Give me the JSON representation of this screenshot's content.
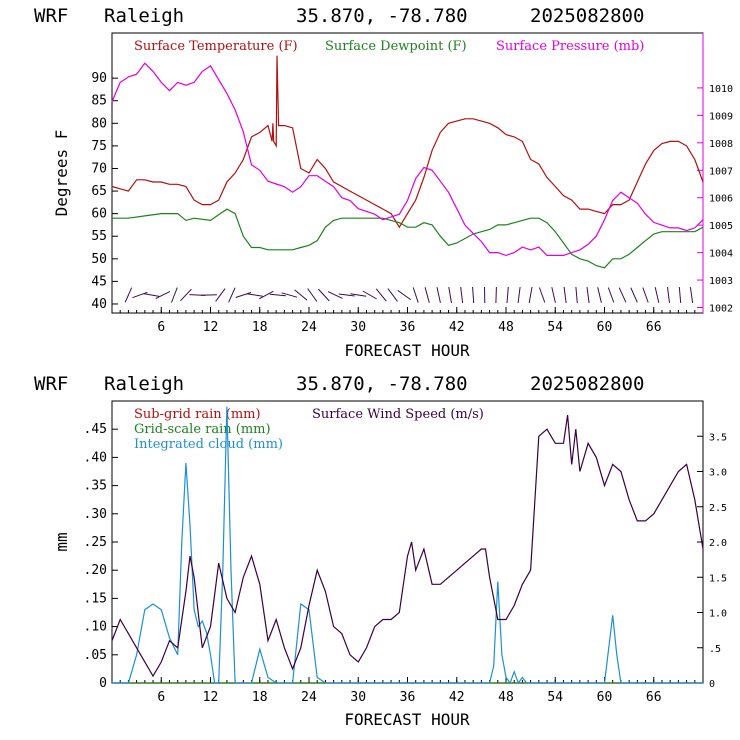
{
  "colors": {
    "temperature": "#b01010",
    "dewpoint": "#208020",
    "pressure": "#e000e0",
    "subgrid_rain": "#b01010",
    "gridscale_rain": "#208020",
    "cloud": "#1f8fd0",
    "wind": "#3a0040",
    "barb": "#3a0a50"
  },
  "panels": [
    {
      "header": {
        "model": "WRF",
        "location": "Raleigh",
        "coords": "35.870, -78.780",
        "init": "2025082800"
      },
      "ylabel": "Degrees F",
      "xlabel": "FORECAST HOUR",
      "xticks": [
        "6",
        "12",
        "18",
        "24",
        "30",
        "36",
        "42",
        "48",
        "54",
        "60",
        "66"
      ],
      "yticks_left": [
        "40",
        "45",
        "50",
        "55",
        "60",
        "65",
        "70",
        "75",
        "80",
        "85",
        "90"
      ],
      "yticks_right": [
        "1002",
        "1003",
        "1004",
        "1005",
        "1006",
        "1007",
        "1008",
        "1009",
        "1010"
      ],
      "legend": [
        "Surface Temperature (F)",
        "Surface Dewpoint (F)",
        "Surface Pressure (mb)"
      ]
    },
    {
      "header": {
        "model": "WRF",
        "location": "Raleigh",
        "coords": "35.870, -78.780",
        "init": "2025082800"
      },
      "ylabel": "mm",
      "xlabel": "FORECAST HOUR",
      "xticks": [
        "6",
        "12",
        "18",
        "24",
        "30",
        "36",
        "42",
        "48",
        "54",
        "60",
        "66"
      ],
      "yticks_left": [
        "0",
        ".05",
        ".10",
        ".15",
        ".20",
        ".25",
        ".30",
        ".35",
        ".40",
        ".45"
      ],
      "yticks_right": [
        "0",
        ".5",
        "1.0",
        "1.5",
        "2.0",
        "2.5",
        "3.0",
        "3.5"
      ],
      "legend": [
        "Sub-grid rain (mm)",
        "Grid-scale rain (mm)",
        "Integrated cloud (mm)",
        "Surface Wind Speed (m/s)"
      ]
    }
  ],
  "chart_data": [
    {
      "type": "line",
      "title": "WRF Raleigh 35.870, -78.780 2025082800",
      "xlabel": "FORECAST HOUR",
      "ylabel": "Degrees F",
      "xlim": [
        0,
        72
      ],
      "ylim": [
        38,
        100
      ],
      "y2lim": [
        1001.8,
        1012
      ],
      "series": [
        {
          "name": "Surface Temperature (F)",
          "axis": "left",
          "x": [
            0,
            1,
            2,
            3,
            4,
            5,
            6,
            7,
            8,
            9,
            10,
            11,
            12,
            13,
            14,
            15,
            16,
            17,
            18,
            19,
            19.5,
            19.6,
            19.7,
            20,
            20.1,
            20.3,
            21,
            22,
            23,
            24,
            25,
            26,
            27,
            28,
            29,
            30,
            31,
            32,
            33,
            34,
            35,
            36,
            37,
            38,
            39,
            40,
            41,
            42,
            43,
            44,
            45,
            46,
            47,
            48,
            49,
            50,
            51,
            52,
            53,
            54,
            55,
            56,
            57,
            58,
            59,
            60,
            61,
            62,
            63,
            64,
            65,
            66,
            67,
            68,
            69,
            70,
            71,
            72
          ],
          "y": [
            66,
            65.5,
            65,
            67.5,
            67.5,
            67,
            67,
            66.5,
            66.5,
            66,
            63,
            62,
            62,
            63,
            67,
            69,
            72,
            77,
            78,
            79.5,
            76,
            80,
            76,
            75,
            95,
            79.5,
            79.5,
            79,
            70,
            69,
            72,
            70,
            67,
            66,
            65,
            64,
            63,
            62,
            61,
            60,
            57,
            60,
            63,
            68,
            74,
            78,
            80,
            80.5,
            81,
            81,
            80.5,
            80,
            79,
            77.5,
            77,
            76,
            72,
            71,
            68,
            66,
            64,
            63,
            61,
            61,
            60.5,
            60,
            62,
            62,
            63,
            67,
            71,
            74,
            75.5,
            76,
            76,
            75,
            72,
            67
          ]
        },
        {
          "name": "Surface Dewpoint (F)",
          "axis": "left",
          "x": [
            0,
            2,
            4,
            6,
            8,
            9,
            10,
            12,
            14,
            15,
            16,
            17,
            18,
            19,
            20,
            21,
            22,
            23,
            24,
            25,
            26,
            27,
            28,
            29,
            30,
            31,
            32,
            33,
            34,
            35,
            36,
            37,
            38,
            39,
            40,
            41,
            42,
            43,
            44,
            45,
            46,
            47,
            48,
            49,
            50,
            51,
            52,
            53,
            54,
            55,
            56,
            57,
            58,
            59,
            60,
            61,
            62,
            63,
            64,
            65,
            66,
            67,
            68,
            69,
            70,
            71,
            72
          ],
          "y": [
            59,
            59,
            59.5,
            60,
            60,
            58.5,
            59,
            58.5,
            61,
            60,
            55,
            52.5,
            52.5,
            52,
            52,
            52,
            52,
            52.5,
            53,
            54,
            57,
            58.5,
            59,
            59,
            59,
            59,
            59,
            59,
            58.5,
            58,
            57,
            57,
            58,
            57.5,
            55,
            53,
            53.5,
            54.5,
            55.5,
            56,
            56.5,
            57.5,
            57.5,
            58,
            58.5,
            59,
            59,
            58,
            56,
            53.5,
            51,
            50,
            49.5,
            48.5,
            48,
            50,
            50,
            51,
            52.5,
            54,
            55.5,
            56,
            56,
            56,
            56,
            56,
            57
          ]
        },
        {
          "name": "Surface Pressure (mb)",
          "axis": "right",
          "x": [
            0,
            1,
            2,
            3,
            4,
            5,
            6,
            7,
            8,
            9,
            10,
            11,
            12,
            13,
            14,
            15,
            16,
            17,
            18,
            19,
            20,
            21,
            22,
            23,
            24,
            25,
            26,
            27,
            28,
            29,
            30,
            31,
            32,
            33,
            34,
            35,
            36,
            37,
            38,
            39,
            40,
            41,
            42,
            43,
            44,
            45,
            46,
            47,
            48,
            49,
            50,
            51,
            52,
            53,
            54,
            55,
            56,
            57,
            58,
            59,
            60,
            61,
            62,
            63,
            64,
            65,
            66,
            67,
            68,
            69,
            70,
            71,
            72
          ],
          "y": [
            1009.5,
            1010.2,
            1010.4,
            1010.5,
            1010.9,
            1010.6,
            1010.2,
            1009.9,
            1010.2,
            1010.1,
            1010.2,
            1010.6,
            1010.8,
            1010.3,
            1009.8,
            1009.2,
            1008.4,
            1007.2,
            1007,
            1006.6,
            1006.5,
            1006.4,
            1006.2,
            1006.4,
            1006.8,
            1006.8,
            1006.6,
            1006.4,
            1006,
            1005.9,
            1005.6,
            1005.5,
            1005.4,
            1005.2,
            1005.3,
            1005.4,
            1005.9,
            1006.7,
            1007.1,
            1007,
            1006.6,
            1006.2,
            1005.6,
            1005,
            1004.7,
            1004.4,
            1004,
            1004,
            1003.9,
            1004,
            1004.2,
            1004.1,
            1004.2,
            1003.9,
            1003.9,
            1003.9,
            1004,
            1004.1,
            1004.3,
            1004.6,
            1005.2,
            1005.9,
            1006.2,
            1006,
            1005.8,
            1005.4,
            1005.1,
            1005,
            1004.9,
            1004.9,
            1004.8,
            1004.9,
            1005.2
          ]
        }
      ],
      "annotations": [
        "wind barbs along the bottom of the panel"
      ]
    },
    {
      "type": "line",
      "title": "WRF Raleigh 35.870, -78.780 2025082800",
      "xlabel": "FORECAST HOUR",
      "ylabel": "mm",
      "xlim": [
        0,
        72
      ],
      "ylim": [
        0,
        0.5
      ],
      "y2lim": [
        0,
        4
      ],
      "series": [
        {
          "name": "Sub-grid rain (mm)",
          "axis": "left",
          "x": [
            0,
            72
          ],
          "y": [
            0,
            0
          ]
        },
        {
          "name": "Grid-scale rain (mm)",
          "axis": "left",
          "x": [
            0,
            72
          ],
          "y": [
            0,
            0
          ]
        },
        {
          "name": "Integrated cloud (mm)",
          "axis": "left",
          "x": [
            0,
            1,
            2,
            3,
            4,
            5,
            6,
            7,
            8,
            8.5,
            9,
            9.5,
            10,
            10.5,
            11,
            11.5,
            12,
            12.5,
            13,
            13.5,
            14,
            14.5,
            15,
            15.5,
            16,
            17,
            18,
            19,
            20,
            21,
            22,
            23,
            24,
            25,
            26,
            27,
            28,
            29,
            30,
            31,
            32,
            33,
            34,
            35,
            36,
            37,
            38,
            39,
            40,
            41,
            42,
            43,
            44,
            45,
            46,
            46.5,
            47,
            47.5,
            48,
            48.5,
            49,
            49.5,
            50,
            50.5,
            51,
            52,
            53,
            54,
            55,
            56,
            57,
            58,
            59,
            60,
            60.5,
            61,
            61.5,
            62,
            63,
            64,
            65,
            66,
            67,
            68,
            69,
            70,
            71,
            72
          ],
          "y": [
            0,
            0,
            0,
            0.05,
            0.13,
            0.14,
            0.13,
            0.08,
            0.05,
            0.25,
            0.39,
            0.28,
            0.13,
            0.1,
            0.11,
            0.09,
            0.05,
            0,
            0,
            0.2,
            0.49,
            0.2,
            0,
            0,
            0,
            0,
            0.06,
            0.01,
            0,
            0,
            0,
            0.14,
            0.13,
            0.01,
            0,
            0,
            0,
            0,
            0,
            0,
            0,
            0,
            0,
            0,
            0,
            0,
            0,
            0,
            0,
            0,
            0,
            0,
            0,
            0,
            0,
            0.03,
            0.18,
            0.05,
            0.01,
            0,
            0.02,
            0,
            0.01,
            0,
            0,
            0,
            0,
            0,
            0,
            0,
            0,
            0,
            0,
            0,
            0.06,
            0.12,
            0.05,
            0,
            0,
            0,
            0,
            0,
            0,
            0,
            0,
            0,
            0,
            0
          ]
        },
        {
          "name": "Surface Wind Speed (m/s)",
          "axis": "right",
          "x": [
            0,
            1,
            2,
            3,
            4,
            5,
            6,
            7,
            8,
            9,
            9.5,
            10,
            11,
            12,
            13,
            14,
            15,
            16,
            17,
            18,
            19,
            20,
            21,
            22,
            23,
            24,
            25,
            26,
            27,
            28,
            29,
            30,
            31,
            32,
            33,
            34,
            35,
            36,
            36.5,
            37,
            38,
            39,
            40,
            41,
            42,
            43,
            44,
            45,
            45.5,
            46,
            47,
            48,
            49,
            50,
            51,
            52,
            53,
            53.5,
            54,
            55,
            55.5,
            56,
            56.5,
            57,
            58,
            59,
            60,
            61,
            62,
            63,
            64,
            65,
            66,
            67,
            68,
            69,
            70,
            71,
            72
          ],
          "y": [
            0.6,
            0.9,
            0.7,
            0.5,
            0.3,
            0.1,
            0.3,
            0.6,
            0.5,
            1.3,
            1.8,
            1.5,
            0.5,
            0.8,
            1.7,
            1.2,
            1.0,
            1.5,
            1.8,
            1.4,
            0.6,
            0.9,
            0.5,
            0.2,
            0.5,
            1.1,
            1.6,
            1.3,
            0.8,
            0.7,
            0.4,
            0.3,
            0.5,
            0.8,
            0.9,
            0.9,
            1.0,
            1.8,
            2.0,
            1.6,
            1.9,
            1.4,
            1.4,
            1.5,
            1.6,
            1.7,
            1.8,
            1.9,
            1.9,
            1.5,
            0.9,
            0.9,
            1.1,
            1.4,
            1.6,
            3.5,
            3.6,
            3.5,
            3.4,
            3.4,
            3.8,
            3.1,
            3.6,
            3.0,
            3.4,
            3.2,
            2.8,
            3.1,
            3.0,
            2.6,
            2.3,
            2.3,
            2.4,
            2.6,
            2.8,
            3.0,
            3.1,
            2.6,
            1.9
          ]
        }
      ]
    }
  ]
}
